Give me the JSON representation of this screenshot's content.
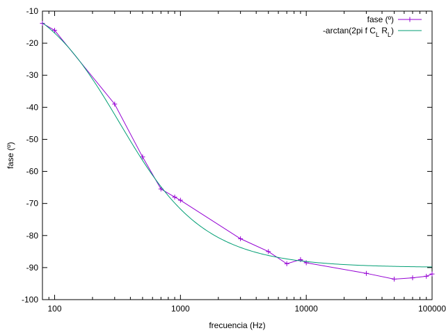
{
  "chart_data": {
    "type": "line",
    "xscale": "log",
    "xlabel": "frecuencia (Hz)",
    "ylabel": "fase (º)",
    "xlim": [
      80,
      100000
    ],
    "ylim": [
      -100,
      -10
    ],
    "xticks": [
      {
        "value": 100,
        "label": "100"
      },
      {
        "value": 1000,
        "label": "1000"
      },
      {
        "value": 10000,
        "label": "10000"
      },
      {
        "value": 100000,
        "label": "100000"
      }
    ],
    "yticks": [
      {
        "value": -10,
        "label": "-10"
      },
      {
        "value": -20,
        "label": "-20"
      },
      {
        "value": -30,
        "label": "-30"
      },
      {
        "value": -40,
        "label": "-40"
      },
      {
        "value": -50,
        "label": "-50"
      },
      {
        "value": -60,
        "label": "-60"
      },
      {
        "value": -70,
        "label": "-70"
      },
      {
        "value": -80,
        "label": "-80"
      },
      {
        "value": -90,
        "label": "-90"
      },
      {
        "value": -100,
        "label": "-100"
      }
    ],
    "grid": false,
    "legend_position": "top-right",
    "series": [
      {
        "name": "fase (º)",
        "kind": "points-line",
        "marker": "plus",
        "color": "#9400d3",
        "x": [
          80,
          100,
          300,
          500,
          700,
          900,
          1000,
          3000,
          5000,
          7000,
          9000,
          10000,
          30000,
          50000,
          70000,
          90000,
          100000
        ],
        "y": [
          -13.8,
          -16,
          -39,
          -55.5,
          -65.5,
          -68,
          -69,
          -81,
          -85,
          -88.8,
          -87.5,
          -88.5,
          -91.8,
          -93.6,
          -93.2,
          -92.7,
          -92
        ]
      },
      {
        "name": "-arctan(2pi f C_L R_L)",
        "name_parts": {
          "prefix": "-arctan(2pi f C",
          "sub1": "L",
          "middle": " R",
          "sub2": "L",
          "suffix": ")"
        },
        "kind": "line",
        "color": "#009e73",
        "function": "-atan(2*pi*f*C_L*R_L)",
        "corner_frequency_hz": 330
      }
    ]
  }
}
